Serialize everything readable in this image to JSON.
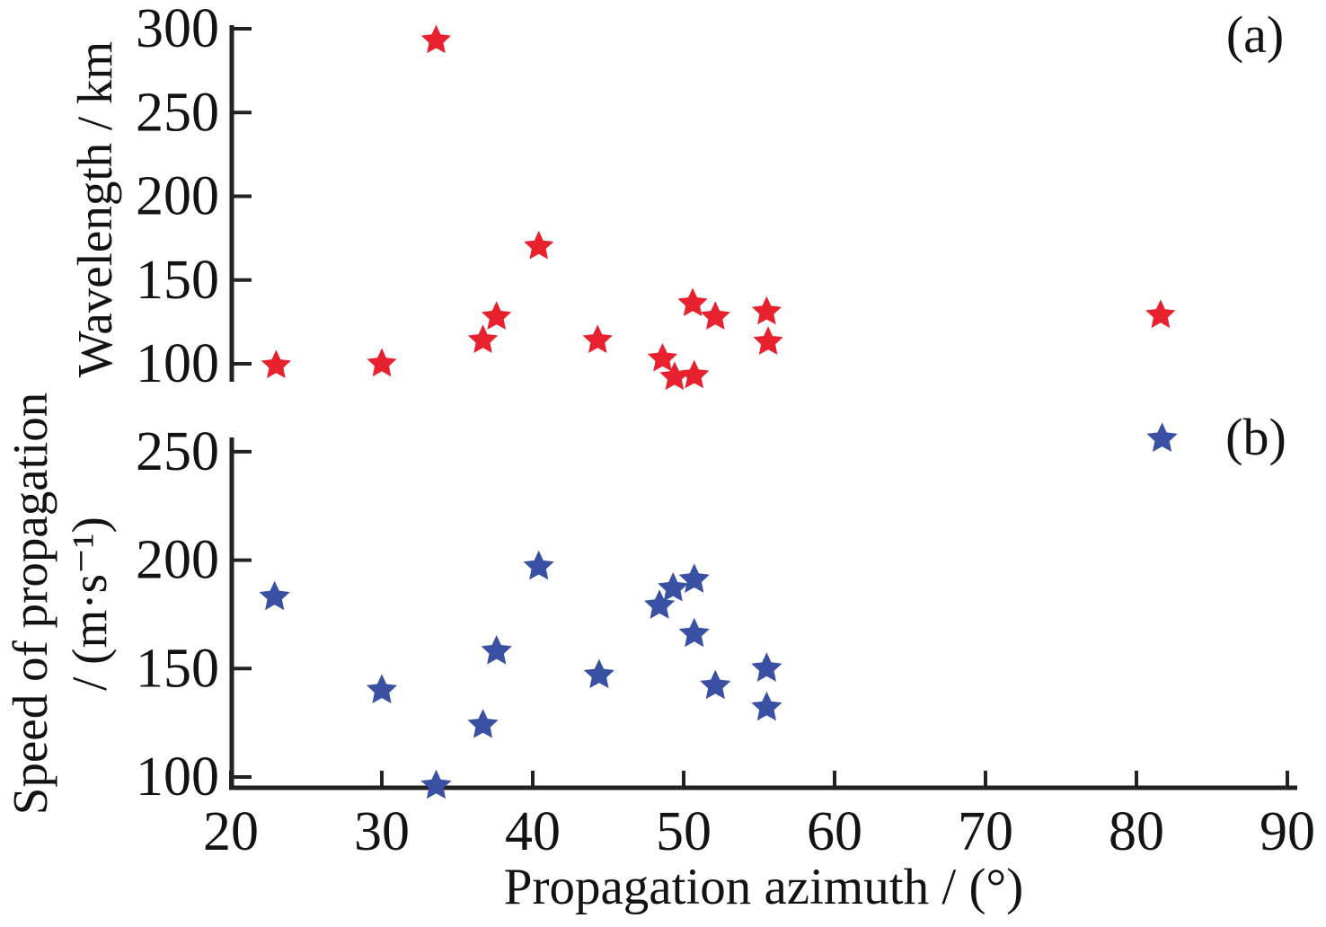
{
  "figure": {
    "panel_a_label": "(a)",
    "panel_b_label": "(b)",
    "x_axis_title": "Propagation azimuth / (°)",
    "a_y_axis_title": "Wavelength / km",
    "b_y_axis_title_line1": "Speed of propagation",
    "b_y_axis_title_line2": "/ (m·s⁻¹)"
  },
  "colors": {
    "a_marker": "#e8212e",
    "b_marker": "#3a50a3",
    "axis": "#222222",
    "text": "#131313",
    "background": "#ffffff"
  },
  "chart_data": [
    {
      "panel": "a",
      "type": "scatter",
      "marker": "star",
      "marker_color": "#e8212e",
      "xlabel": "Propagation azimuth / (°)",
      "ylabel": "Wavelength / km",
      "xlim": [
        20,
        90
      ],
      "ylim": [
        90,
        302
      ],
      "xticks": [
        20,
        30,
        40,
        50,
        60,
        70,
        80,
        90
      ],
      "yticks": [
        100,
        150,
        200,
        250,
        300
      ],
      "grid": false,
      "legend": null,
      "x": [
        23.0,
        30.0,
        33.6,
        36.7,
        37.6,
        40.4,
        44.3,
        48.6,
        49.4,
        50.6,
        50.7,
        52.1,
        55.5,
        55.6,
        81.6
      ],
      "y": [
        99,
        100,
        293,
        114,
        128,
        170,
        114,
        103,
        92,
        136,
        93,
        128,
        131,
        113,
        129
      ]
    },
    {
      "panel": "b",
      "type": "scatter",
      "marker": "star",
      "marker_color": "#3a50a3",
      "xlabel": "Propagation azimuth / (°)",
      "ylabel": "Speed of propagation / (m·s⁻¹)",
      "xlim": [
        20,
        90
      ],
      "ylim": [
        95,
        258
      ],
      "xticks": [
        20,
        30,
        40,
        50,
        60,
        70,
        80,
        90
      ],
      "yticks": [
        100,
        150,
        200,
        250
      ],
      "grid": false,
      "legend": null,
      "x": [
        22.9,
        30.0,
        33.6,
        36.7,
        37.6,
        40.4,
        44.4,
        48.4,
        49.3,
        50.7,
        50.7,
        52.1,
        55.5,
        55.5,
        81.7
      ],
      "y": [
        183,
        140,
        96,
        124,
        158,
        197,
        147,
        179,
        187,
        191,
        166,
        142,
        150,
        132,
        256
      ]
    }
  ]
}
